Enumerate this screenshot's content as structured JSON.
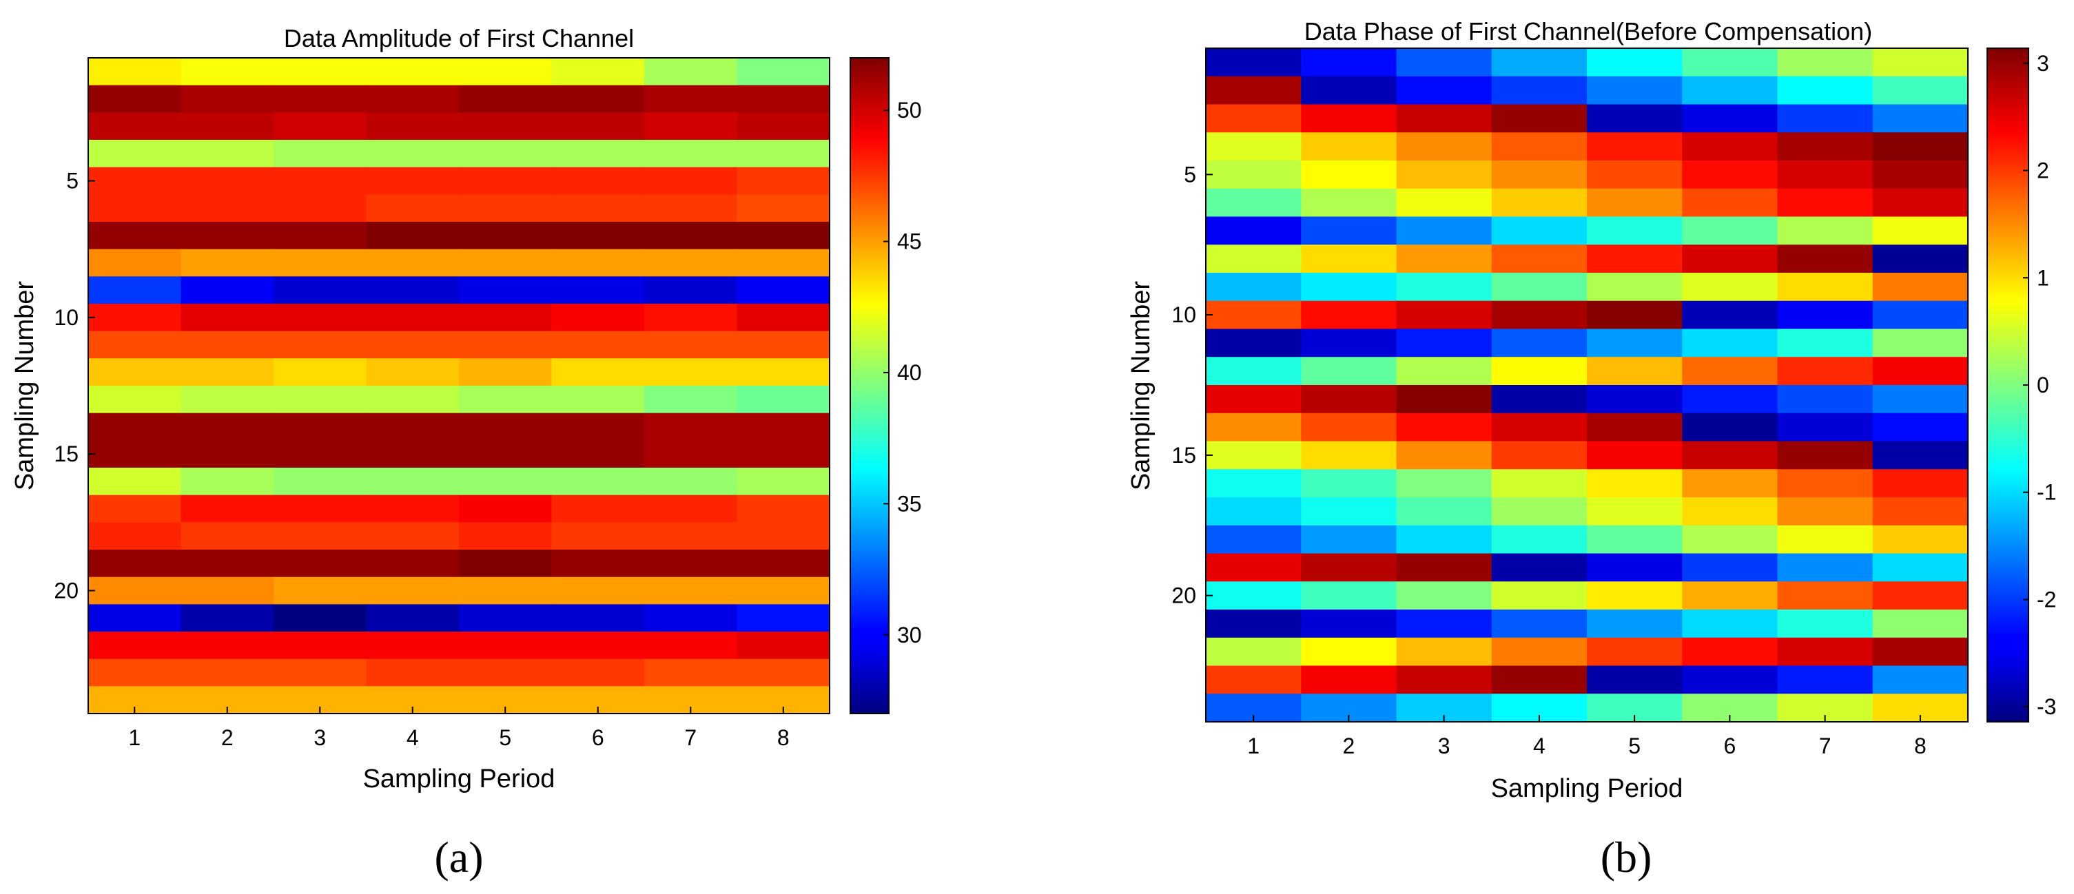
{
  "chart_data": [
    {
      "type": "heatmap",
      "title": "Data Amplitude of First Channel",
      "xlabel": "Sampling Period",
      "ylabel": "Sampling Number",
      "caption": "(a)",
      "x_ticks": [
        "1",
        "2",
        "3",
        "4",
        "5",
        "6",
        "7",
        "8"
      ],
      "y_ticks": [
        "5",
        "10",
        "15",
        "20"
      ],
      "y_tick_values": [
        5,
        10,
        15,
        20
      ],
      "n_rows": 24,
      "n_cols": 8,
      "clim": [
        27,
        52
      ],
      "colorbar_ticks": [
        30,
        35,
        40,
        45,
        50
      ],
      "colorbar_tick_labels": [
        "30",
        "35",
        "40",
        "45",
        "50"
      ],
      "colormap": "jet",
      "values": [
        [
          43.0,
          42.5,
          42.5,
          42.5,
          42.5,
          42.0,
          40.5,
          39.5
        ],
        [
          51.5,
          51.0,
          51.0,
          51.0,
          51.5,
          51.5,
          51.0,
          51.0
        ],
        [
          50.5,
          50.5,
          50.0,
          50.5,
          50.5,
          50.5,
          50.0,
          50.5
        ],
        [
          41.0,
          41.0,
          40.5,
          40.5,
          40.5,
          40.5,
          40.5,
          40.5
        ],
        [
          48.0,
          48.0,
          48.0,
          48.0,
          48.0,
          48.0,
          48.0,
          47.5
        ],
        [
          48.0,
          48.0,
          48.0,
          47.5,
          47.5,
          47.5,
          47.5,
          47.0
        ],
        [
          51.5,
          51.5,
          51.5,
          52.0,
          52.0,
          52.0,
          52.0,
          52.0
        ],
        [
          45.5,
          45.0,
          45.0,
          45.0,
          45.0,
          45.0,
          45.0,
          45.0
        ],
        [
          31.5,
          30.0,
          29.0,
          29.0,
          29.5,
          29.5,
          29.0,
          30.0
        ],
        [
          48.5,
          49.5,
          49.5,
          49.5,
          49.5,
          49.0,
          48.5,
          49.5
        ],
        [
          47.0,
          47.0,
          47.0,
          47.0,
          47.0,
          47.0,
          47.0,
          47.0
        ],
        [
          44.0,
          44.0,
          43.5,
          44.0,
          44.5,
          43.5,
          43.5,
          43.5
        ],
        [
          41.5,
          41.0,
          41.0,
          41.0,
          40.5,
          40.5,
          39.5,
          39.0
        ],
        [
          51.5,
          51.5,
          51.5,
          51.5,
          51.5,
          51.5,
          51.0,
          51.0
        ],
        [
          51.5,
          51.5,
          51.5,
          51.5,
          51.5,
          51.5,
          51.0,
          51.0
        ],
        [
          41.5,
          40.5,
          40.0,
          40.0,
          40.0,
          40.0,
          40.0,
          40.5
        ],
        [
          47.5,
          48.5,
          48.5,
          48.5,
          49.0,
          48.0,
          48.0,
          47.5
        ],
        [
          48.0,
          47.5,
          47.5,
          47.5,
          48.0,
          47.5,
          47.5,
          47.5
        ],
        [
          51.5,
          51.5,
          51.5,
          51.5,
          52.0,
          51.5,
          51.5,
          51.5
        ],
        [
          45.5,
          45.5,
          45.0,
          45.0,
          45.0,
          45.0,
          45.0,
          45.0
        ],
        [
          29.5,
          28.0,
          27.0,
          28.0,
          29.0,
          29.0,
          29.5,
          30.5
        ],
        [
          49.0,
          49.0,
          49.0,
          49.0,
          49.0,
          49.0,
          49.0,
          49.5
        ],
        [
          47.0,
          47.0,
          47.0,
          47.5,
          47.5,
          47.5,
          47.0,
          47.0
        ],
        [
          44.5,
          44.5,
          44.5,
          44.5,
          44.5,
          44.5,
          44.5,
          44.5
        ]
      ]
    },
    {
      "type": "heatmap",
      "title": "Data Phase of First Channel(Before Compensation)",
      "xlabel": "Sampling Period",
      "ylabel": "Sampling Number",
      "caption": "(b)",
      "x_ticks": [
        "1",
        "2",
        "3",
        "4",
        "5",
        "6",
        "7",
        "8"
      ],
      "y_ticks": [
        "5",
        "10",
        "15",
        "20"
      ],
      "y_tick_values": [
        5,
        10,
        15,
        20
      ],
      "n_rows": 24,
      "n_cols": 8,
      "clim": [
        -3.14,
        3.14
      ],
      "colorbar_ticks": [
        -3,
        -2,
        -1,
        0,
        1,
        2,
        3
      ],
      "colorbar_tick_labels": [
        "-3",
        "-2",
        "-1",
        "0",
        "1",
        "2",
        "3"
      ],
      "colormap": "jet",
      "values": [
        [
          -2.8,
          -2.3,
          -1.8,
          -1.3,
          -0.8,
          -0.3,
          0.2,
          0.5
        ],
        [
          2.9,
          -2.8,
          -2.3,
          -2.0,
          -1.6,
          -1.2,
          -0.8,
          -0.4
        ],
        [
          2.0,
          2.4,
          2.7,
          3.0,
          -2.8,
          -2.5,
          -2.0,
          -1.6
        ],
        [
          0.6,
          1.1,
          1.5,
          1.8,
          2.2,
          2.6,
          2.9,
          3.1
        ],
        [
          0.4,
          0.8,
          1.2,
          1.5,
          1.9,
          2.3,
          2.6,
          2.9
        ],
        [
          -0.2,
          0.3,
          0.7,
          1.1,
          1.5,
          1.9,
          2.3,
          2.6
        ],
        [
          -2.4,
          -1.9,
          -1.5,
          -1.0,
          -0.6,
          -0.2,
          0.3,
          0.7
        ],
        [
          0.5,
          1.0,
          1.4,
          1.8,
          2.2,
          2.6,
          3.0,
          -3.0
        ],
        [
          -1.2,
          -0.9,
          -0.6,
          -0.2,
          0.3,
          0.6,
          1.0,
          1.6
        ],
        [
          1.9,
          2.3,
          2.6,
          2.9,
          3.1,
          -2.8,
          -2.4,
          -1.9
        ],
        [
          -2.9,
          -2.6,
          -2.2,
          -1.8,
          -1.4,
          -1.0,
          -0.6,
          0.1
        ],
        [
          -0.6,
          -0.2,
          0.3,
          0.8,
          1.2,
          1.7,
          2.1,
          2.4
        ],
        [
          2.5,
          2.8,
          3.1,
          -2.9,
          -2.6,
          -2.2,
          -1.9,
          -1.6
        ],
        [
          1.5,
          1.9,
          2.3,
          2.6,
          2.9,
          -3.0,
          -2.6,
          -2.3
        ],
        [
          0.6,
          1.0,
          1.5,
          2.0,
          2.4,
          2.7,
          3.0,
          -2.9
        ],
        [
          -0.7,
          -0.4,
          0.0,
          0.5,
          0.9,
          1.4,
          1.8,
          2.2
        ],
        [
          -1.0,
          -0.7,
          -0.3,
          0.2,
          0.6,
          1.0,
          1.5,
          1.9
        ],
        [
          -1.8,
          -1.4,
          -1.0,
          -0.6,
          -0.2,
          0.3,
          0.7,
          1.1
        ],
        [
          2.5,
          2.8,
          3.0,
          -2.9,
          -2.5,
          -2.0,
          -1.5,
          -1.0
        ],
        [
          -0.7,
          -0.4,
          0.0,
          0.5,
          0.9,
          1.3,
          1.8,
          2.1
        ],
        [
          -2.9,
          -2.6,
          -2.2,
          -1.8,
          -1.4,
          -1.0,
          -0.6,
          0.1
        ],
        [
          0.4,
          0.8,
          1.2,
          1.6,
          2.0,
          2.3,
          2.6,
          2.9
        ],
        [
          2.0,
          2.4,
          2.7,
          3.0,
          -2.9,
          -2.6,
          -2.2,
          -1.5
        ],
        [
          -1.8,
          -1.5,
          -1.1,
          -0.8,
          -0.4,
          0.1,
          0.5,
          1.0
        ]
      ]
    }
  ]
}
